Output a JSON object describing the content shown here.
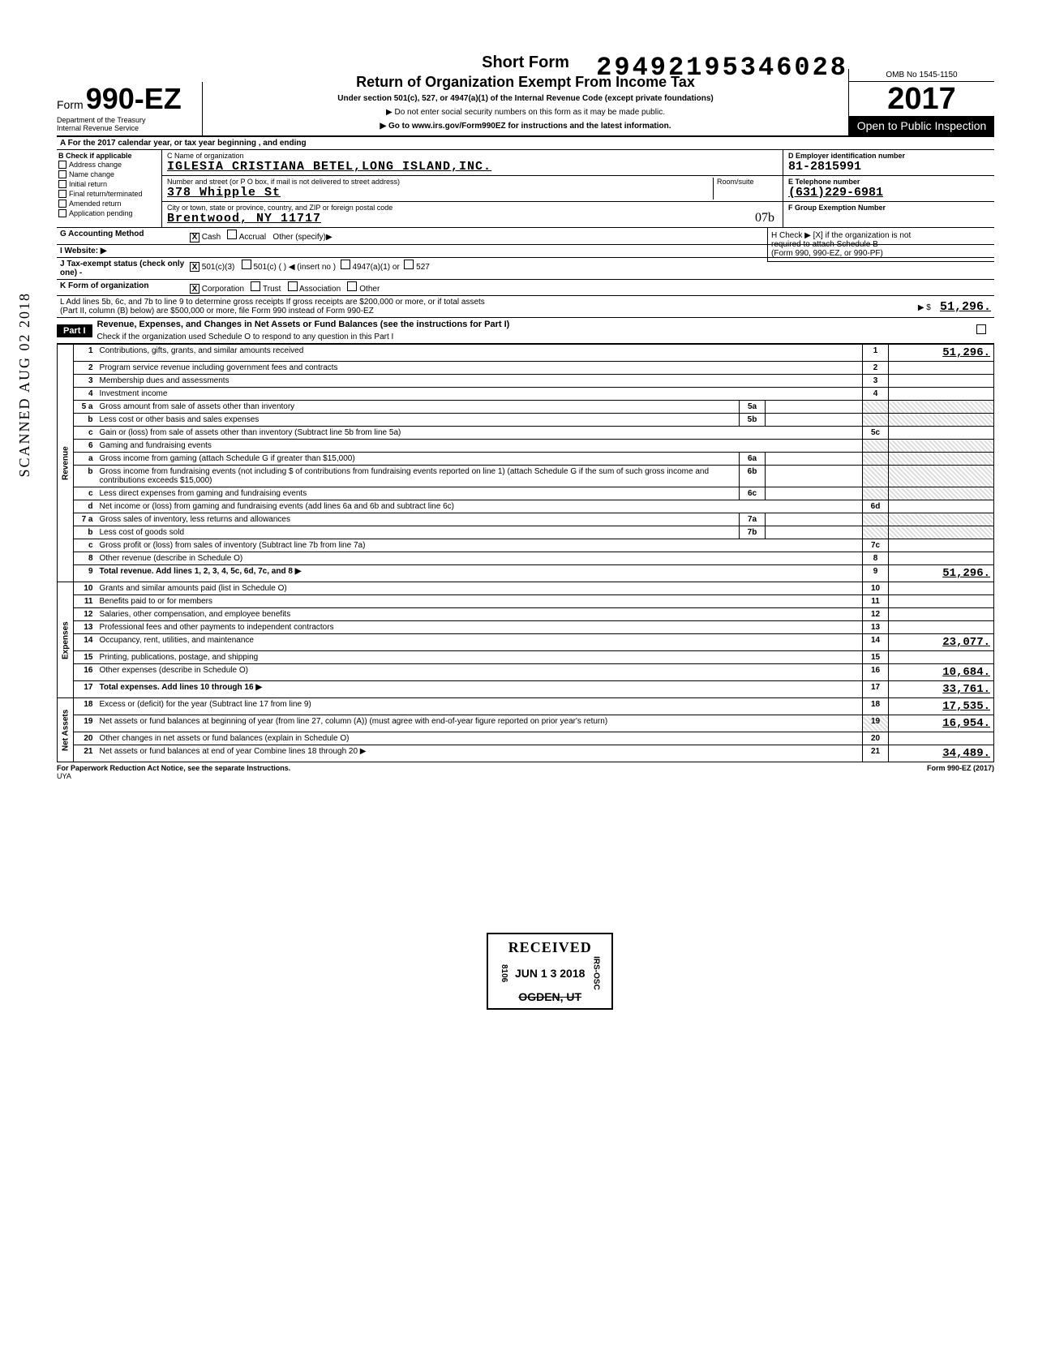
{
  "dln": "29492195346028",
  "form": {
    "prefix": "Form",
    "number": "990-EZ",
    "short": "Short Form",
    "title": "Return of Organization Exempt From Income Tax",
    "sub": "Under section 501(c), 527, or 4947(a)(1) of the Internal Revenue Code (except private foundations)",
    "instr1": "▶ Do not enter social security numbers on this form as it may be made public.",
    "instr2": "▶ Go to www.irs.gov/Form990EZ for instructions and the latest information.",
    "dept1": "Department of the Treasury",
    "dept2": "Internal Revenue Service",
    "omb": "OMB No 1545-1150",
    "year": "2017",
    "open": "Open to Public Inspection"
  },
  "row_a": "A  For the 2017 calendar year, or tax year beginning                                                              , and ending",
  "col_b": {
    "hdr": "B  Check if applicable",
    "items": [
      "Address change",
      "Name change",
      "Initial return",
      "Final return/terminated",
      "Amended return",
      "Application pending"
    ]
  },
  "col_c": {
    "name_lbl": "C   Name of organization",
    "name": "IGLESIA CRISTIANA BETEL,LONG ISLAND,INC.",
    "street_lbl": "Number and street (or P O  box, if mail is not delivered to street address)",
    "room_lbl": "Room/suite",
    "street": "378 Whipple St",
    "city_lbl": "City or town, state or province, country, and ZIP or foreign postal code",
    "city": "Brentwood, NY 11717"
  },
  "col_d": {
    "ein_lbl": "D Employer identification number",
    "ein": "81-2815991",
    "tel_lbl": "E  Telephone number",
    "tel": "(631)229-6981",
    "grp_lbl": "F  Group Exemption Number"
  },
  "hand_note": "07b",
  "g": {
    "lbl": "G Accounting Method",
    "cash": "Cash",
    "accrual": "Accrual",
    "other": "Other (specify)▶"
  },
  "i": {
    "lbl": "I  Website: ▶"
  },
  "h": {
    "l1": "H  Check ▶ [X] if the organization is not",
    "l2": "required to attach Schedule B",
    "l3": "(Form 990, 990-EZ, or 990-PF)"
  },
  "j": {
    "lbl": "J  Tax-exempt status (check only one) -",
    "c3": "501(c)(3)",
    "c": "501(c) (        ) ◀ (insert no )",
    "a1": "4947(a)(1) or",
    "s527": "527"
  },
  "k": {
    "lbl": "K  Form of organization",
    "corp": "Corporation",
    "trust": "Trust",
    "assoc": "Association",
    "other": "Other"
  },
  "l": {
    "t1": "L  Add lines 5b, 6c, and 7b to line 9 to determine gross receipts  If gross receipts are $200,000 or more, or if total assets",
    "t2": "(Part II, column (B) below) are $500,000 or more, file Form 990 instead of Form 990-EZ",
    "sym": "▶  $",
    "amt": "51,296."
  },
  "part1": {
    "hdr": "Part I",
    "title": "Revenue, Expenses, and Changes in Net Assets or Fund Balances (see the instructions for Part I)",
    "sub": "Check if the organization used Schedule O to respond to any question in this Part I"
  },
  "sections": {
    "rev": "Revenue",
    "exp": "Expenses",
    "net": "Net Assets"
  },
  "lines": [
    {
      "n": "1",
      "d": "Contributions, gifts, grants, and similar amounts received",
      "ln": "1",
      "amt": "51,296.",
      "u": true
    },
    {
      "n": "2",
      "d": "Program service revenue including government fees and contracts",
      "ln": "2",
      "amt": ""
    },
    {
      "n": "3",
      "d": "Membership dues and assessments",
      "ln": "3",
      "amt": ""
    },
    {
      "n": "4",
      "d": "Investment income",
      "ln": "4",
      "amt": ""
    },
    {
      "n": "5 a",
      "d": "Gross amount from sale of assets other than inventory",
      "mini": "5a",
      "shade": true
    },
    {
      "n": "b",
      "d": "Less  cost or other basis and sales expenses",
      "mini": "5b",
      "shade": true
    },
    {
      "n": "c",
      "d": "Gain or (loss) from sale of assets other than inventory (Subtract line 5b from line 5a)",
      "ln": "5c",
      "amt": ""
    },
    {
      "n": "6",
      "d": "Gaming and fundraising events",
      "shade": true
    },
    {
      "n": "a",
      "d": "Gross income from gaming (attach Schedule G if greater than $15,000)",
      "mini": "6a",
      "shade": true
    },
    {
      "n": "b",
      "d": "Gross income from fundraising events (not including $                                   of contributions from fundraising events reported on line 1) (attach Schedule G if the sum of such gross income and contributions exceeds $15,000)",
      "mini": "6b",
      "shade": true
    },
    {
      "n": "c",
      "d": "Less  direct expenses from gaming and fundraising events",
      "mini": "6c",
      "shade": true
    },
    {
      "n": "d",
      "d": "Net income or (loss) from gaming and fundraising events (add lines 6a and 6b and subtract line 6c)",
      "ln": "6d",
      "amt": ""
    },
    {
      "n": "7 a",
      "d": "Gross sales of inventory, less returns and allowances",
      "mini": "7a",
      "shade": true
    },
    {
      "n": "b",
      "d": "Less  cost of goods sold",
      "mini": "7b",
      "shade": true
    },
    {
      "n": "c",
      "d": "Gross profit or (loss) from sales of inventory (Subtract line 7b from line 7a)",
      "ln": "7c",
      "amt": ""
    },
    {
      "n": "8",
      "d": "Other revenue (describe in Schedule O)",
      "ln": "8",
      "amt": ""
    },
    {
      "n": "9",
      "d": "Total revenue.  Add lines 1, 2, 3, 4, 5c, 6d, 7c, and 8",
      "ln": "9",
      "amt": "51,296.",
      "u": true,
      "bold": true,
      "arrow": true
    },
    {
      "n": "10",
      "d": "Grants and similar amounts paid (list in Schedule O)",
      "ln": "10",
      "amt": ""
    },
    {
      "n": "11",
      "d": "Benefits paid to or for members",
      "ln": "11",
      "amt": ""
    },
    {
      "n": "12",
      "d": "Salaries, other compensation, and employee benefits",
      "ln": "12",
      "amt": ""
    },
    {
      "n": "13",
      "d": "Professional fees and other payments to independent contractors",
      "ln": "13",
      "amt": ""
    },
    {
      "n": "14",
      "d": "Occupancy, rent, utilities, and maintenance",
      "ln": "14",
      "amt": "23,077.",
      "u": true
    },
    {
      "n": "15",
      "d": "Printing, publications, postage, and shipping",
      "ln": "15",
      "amt": ""
    },
    {
      "n": "16",
      "d": "Other expenses (describe in Schedule O)",
      "ln": "16",
      "amt": "10,684.",
      "u": true
    },
    {
      "n": "17",
      "d": "Total expenses.   Add lines 10 through 16",
      "ln": "17",
      "amt": "33,761.",
      "u": true,
      "bold": true,
      "arrow": true
    },
    {
      "n": "18",
      "d": "Excess or (deficit) for the year (Subtract line 17 from line 9)",
      "ln": "18",
      "amt": "17,535.",
      "u": true
    },
    {
      "n": "19",
      "d": "Net assets or fund balances at beginning of year (from line 27, column (A)) (must agree with end-of-year figure reported on prior year's return)",
      "ln": "19",
      "amt": "16,954.",
      "u": true,
      "shade19": true
    },
    {
      "n": "20",
      "d": "Other changes in net assets or fund balances (explain in Schedule O)",
      "ln": "20",
      "amt": ""
    },
    {
      "n": "21",
      "d": "Net assets or fund balances at end of year  Combine lines 18 through 20",
      "ln": "21",
      "amt": "34,489.",
      "u": true,
      "arrow": true
    }
  ],
  "stamp": {
    "scanned": "SCANNED AUG 02 2018",
    "recv": "RECEIVED",
    "date": "JUN 1 3 2018",
    "city": "OGDEN, UT",
    "side": "IRS-OSC",
    "code": "8106"
  },
  "footer": {
    "l": "For Paperwork Reduction Act Notice, see the separate Instructions.",
    "uya": "UYA",
    "r": "Form 990-EZ  (2017)"
  }
}
